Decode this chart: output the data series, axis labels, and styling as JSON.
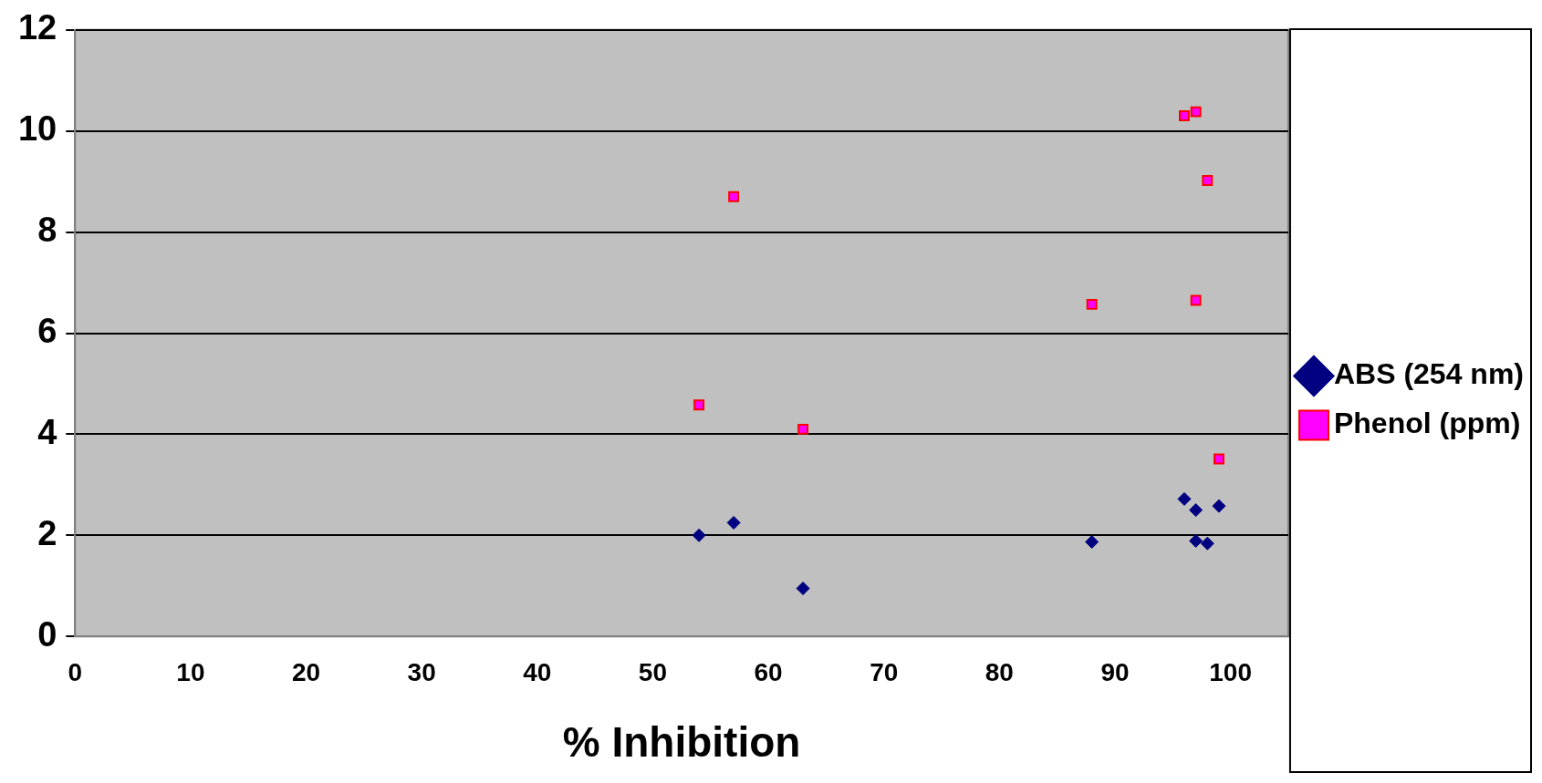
{
  "chart_data": {
    "type": "scatter",
    "xlabel": "% Inhibition",
    "xlim": [
      0,
      105
    ],
    "xticks": [
      0,
      10,
      20,
      30,
      40,
      50,
      60,
      70,
      80,
      90,
      100
    ],
    "ylim": [
      0,
      12
    ],
    "yticks": [
      0,
      2,
      4,
      6,
      8,
      10,
      12
    ],
    "grid": "y",
    "legend": "right",
    "series": [
      {
        "name": "ABS (254 nm)",
        "color": "#000080",
        "marker": "diamond",
        "x": [
          54,
          57,
          63,
          88,
          96,
          97,
          97,
          98,
          99
        ],
        "values": [
          2.0,
          2.25,
          0.95,
          1.87,
          2.72,
          2.5,
          1.89,
          1.84,
          2.58
        ]
      },
      {
        "name": "Phenol (ppm)",
        "color": "#ff00ff",
        "marker": "square",
        "x": [
          54,
          57,
          63,
          88,
          96,
          97,
          97,
          98,
          99
        ],
        "values": [
          4.58,
          8.7,
          4.1,
          6.57,
          10.3,
          10.38,
          6.65,
          9.02,
          3.51
        ]
      }
    ]
  }
}
